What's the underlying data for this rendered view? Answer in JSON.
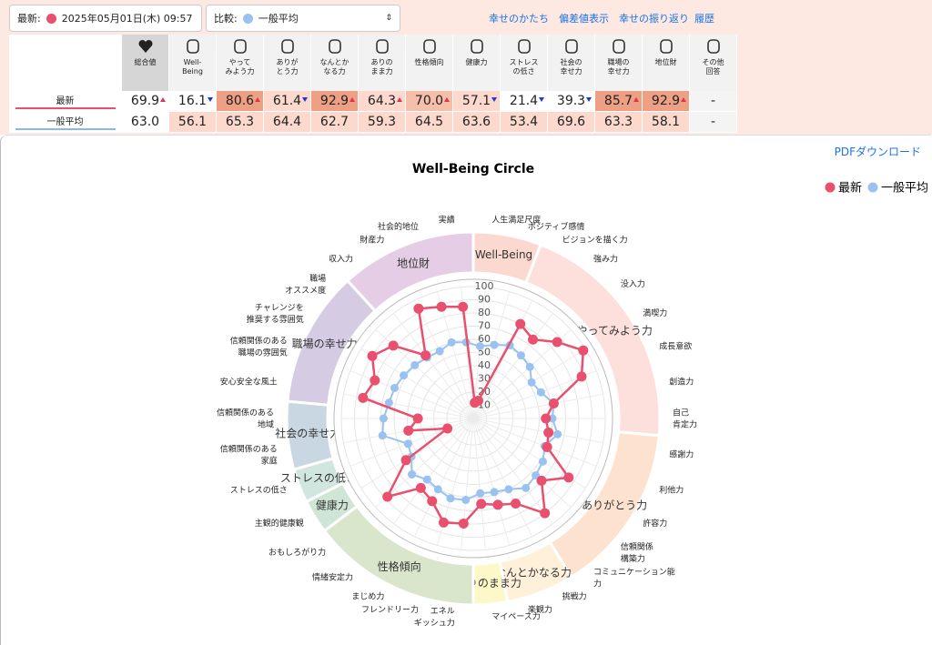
{
  "header": {
    "latest_label": "最新:",
    "latest_value": "2025年05月01日(木) 09:57",
    "compare_label": "比較:",
    "compare_value": "一般平均",
    "links": [
      "幸せのかたち",
      "偏差値表示",
      "幸せの振り返り",
      "履歴"
    ]
  },
  "table": {
    "columns": [
      "総合値",
      "Well-\nBeing",
      "やって\nみよう力",
      "ありが\nとう力",
      "なんとか\nなる力",
      "ありの\nまま力",
      "性格傾向",
      "健康力",
      "ストレス\nの低さ",
      "社会の\n幸せ力",
      "職場の\n幸せ力",
      "地位財",
      "その他\n回答"
    ],
    "rows": [
      {
        "label": "最新",
        "color": "#e8506e",
        "values": [
          "69.9",
          "16.1",
          "80.6",
          "61.4",
          "92.9",
          "64.3",
          "70.0",
          "57.1",
          "21.4",
          "39.3",
          "85.7",
          "92.9",
          "-"
        ]
      },
      {
        "label": "一般平均",
        "color": "#8ab8ee",
        "values": [
          "63.0",
          "56.1",
          "65.3",
          "64.4",
          "62.7",
          "59.3",
          "64.5",
          "63.6",
          "53.4",
          "69.6",
          "63.3",
          "58.1",
          "-"
        ]
      }
    ]
  },
  "pdf_link": "PDFダウンロード",
  "chart_data": {
    "type": "radar",
    "title": "Well-Being Circle",
    "rlim": [
      0,
      100
    ],
    "rticks": [
      10,
      20,
      30,
      40,
      50,
      60,
      70,
      80,
      90,
      100
    ],
    "grid": true,
    "legend": "top-right",
    "groups": [
      {
        "name": "Well-Being",
        "color": "#fbd9d0",
        "items": [
          "人生満足尺度",
          "ポジティブ感情"
        ]
      },
      {
        "name": "やってみよう力",
        "color": "#fde0dc",
        "items": [
          "ビジョンを描く力",
          "強み力",
          "没入力",
          "満喫力",
          "成長意欲",
          "創造力",
          "自己\n肯定力"
        ]
      },
      {
        "name": "ありがとう力",
        "color": "#fde3cf",
        "items": [
          "感謝力",
          "利他力",
          "許容力",
          "信頼関係\n構築力",
          "コミュニケーション能\n力"
        ]
      },
      {
        "name": "なんとかなる力",
        "color": "#fef0d9",
        "items": [
          "挑戦力",
          "楽観力"
        ]
      },
      {
        "name": "ありのまま力",
        "color": "#fdf8c8",
        "items": [
          "マイペース力"
        ]
      },
      {
        "name": "性格傾向",
        "color": "#d9e6cc",
        "items": [
          "エネル\nギッシュ力",
          "フレンドリー力",
          "まじめ力",
          "情緒安定力",
          "おもしろがり力"
        ]
      },
      {
        "name": "健康力",
        "color": "#cfe5d6",
        "items": [
          "主観的健康観"
        ]
      },
      {
        "name": "ストレスの低さ",
        "color": "#d2e6e0",
        "items": [
          "ストレスの低さ"
        ]
      },
      {
        "name": "社会の幸せ力",
        "color": "#c9d7e2",
        "items": [
          "信頼関係のある\n家庭",
          "信頼関係のある\n地域"
        ]
      },
      {
        "name": "職場の幸せ力",
        "color": "#d5cce4",
        "items": [
          "安心安全な風土",
          "信頼関係のある\n職場の雰囲気",
          "チャレンジを\n推奨する雰囲気",
          "職場\nオススメ度"
        ]
      },
      {
        "name": "地位財",
        "color": "#e6cde6",
        "items": [
          "収入力",
          "財産力",
          "社会的地位",
          "実績"
        ]
      }
    ],
    "series": [
      {
        "name": "最新",
        "color": "#e8506e",
        "values": [
          12,
          14,
          80,
          75,
          86,
          98,
          88,
          62,
          55,
          58,
          60,
          85,
          70,
          90,
          72,
          68,
          65,
          80,
          82,
          70,
          66,
          88,
          60,
          21,
          50,
          42,
          85,
          80,
          90,
          82,
          60,
          93,
          88,
          85
        ]
      },
      {
        "name": "一般平均",
        "color": "#99c2f0",
        "values": [
          55,
          58,
          62,
          60,
          58,
          52,
          55,
          62,
          60,
          65,
          58,
          62,
          64,
          66,
          60,
          58,
          57,
          62,
          63,
          60,
          58,
          63,
          55,
          53,
          70,
          68,
          65,
          64,
          62,
          60,
          58,
          57,
          60,
          58
        ]
      }
    ]
  }
}
